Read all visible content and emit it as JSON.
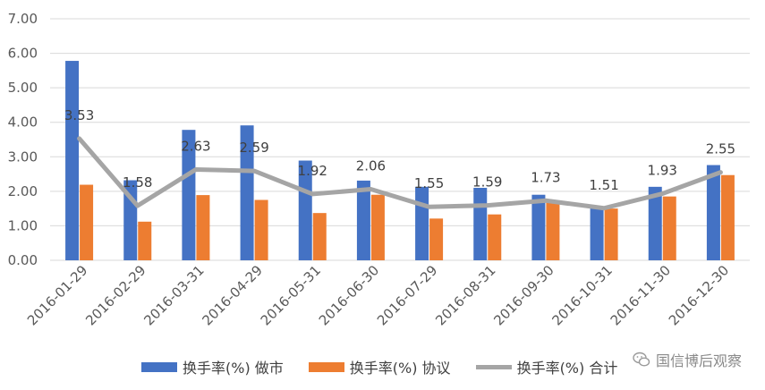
{
  "chart_data": {
    "type": "bar+line",
    "categories": [
      "2016-01-29",
      "2016-02-29",
      "2016-03-31",
      "2016-04-29",
      "2016-05-31",
      "2016-06-30",
      "2016-07-29",
      "2016-08-31",
      "2016-09-30",
      "2016-10-31",
      "2016-11-30",
      "2016-12-30"
    ],
    "series": [
      {
        "name": "换手率(%) 做市",
        "type": "bar",
        "color": "#4472C4",
        "values": [
          5.78,
          2.32,
          3.78,
          3.91,
          2.89,
          2.31,
          2.13,
          2.1,
          1.9,
          1.57,
          2.13,
          2.76
        ]
      },
      {
        "name": "换手率(%) 协议",
        "type": "bar",
        "color": "#ED7D31",
        "values": [
          2.19,
          1.12,
          1.89,
          1.75,
          1.37,
          1.9,
          1.21,
          1.33,
          1.7,
          1.5,
          1.85,
          2.47
        ]
      },
      {
        "name": "换手率(%) 合计",
        "type": "line",
        "color": "#A5A5A5",
        "values": [
          3.53,
          1.58,
          2.63,
          2.59,
          1.92,
          2.06,
          1.55,
          1.59,
          1.73,
          1.51,
          1.93,
          2.55
        ],
        "data_labels": [
          "3.53",
          "1.58",
          "2.63",
          "2.59",
          "1.92",
          "2.06",
          "1.55",
          "1.59",
          "1.73",
          "1.51",
          "1.93",
          "2.55"
        ]
      }
    ],
    "y_ticks": [
      "0.00",
      "1.00",
      "2.00",
      "3.00",
      "4.00",
      "5.00",
      "6.00",
      "7.00"
    ],
    "ylim": [
      0,
      7
    ],
    "grid": "horizontal",
    "legend": "bottom"
  },
  "watermark": {
    "text": "国信博后观察",
    "icon": "wechat-icon"
  }
}
